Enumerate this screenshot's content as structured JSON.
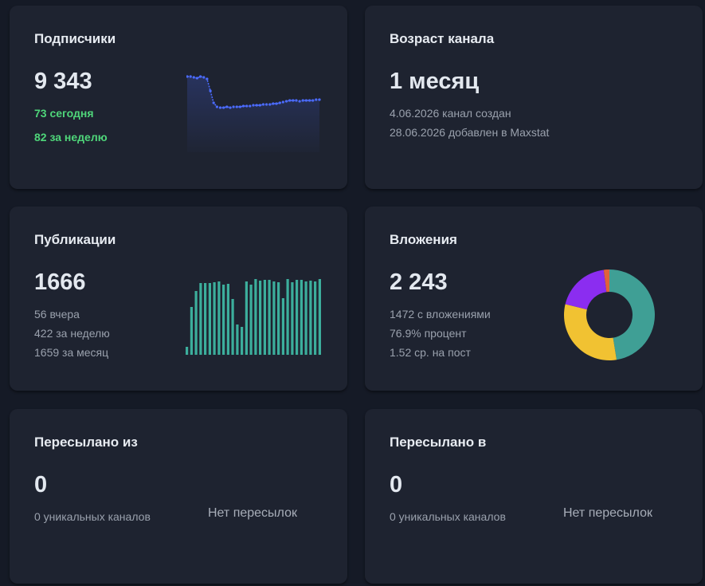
{
  "subscribers": {
    "title": "Подписчики",
    "value": "9 343",
    "today": "73 сегодня",
    "week": "82 за неделю",
    "color": "#4b6bff",
    "chart_data": {
      "type": "line",
      "values": [
        9343,
        9343,
        9342,
        9341,
        9343,
        9342,
        9340,
        9325,
        9310,
        9305,
        9304,
        9304,
        9305,
        9304,
        9305,
        9305,
        9305,
        9306,
        9306,
        9306,
        9307,
        9307,
        9307,
        9308,
        9308,
        9308,
        9309,
        9309,
        9310,
        9311,
        9312,
        9313,
        9313,
        9313,
        9312,
        9313,
        9313,
        9313,
        9313,
        9314,
        9314
      ],
      "ylim": [
        9250,
        9345
      ]
    }
  },
  "age": {
    "title": "Возраст канала",
    "value": "1 месяц",
    "created": "4.06.2026 канал создан",
    "added": "28.06.2026 добавлен в Maxstat"
  },
  "publications": {
    "title": "Публикации",
    "value": "1666",
    "yesterday": "56 вчера",
    "week": "422 за неделю",
    "month": "1659 за месяц",
    "color": "#3cae9c",
    "chart_data": {
      "type": "bar",
      "values": [
        10,
        60,
        80,
        90,
        90,
        90,
        91,
        92,
        88,
        89,
        70,
        38,
        35,
        92,
        88,
        95,
        93,
        94,
        94,
        92,
        91,
        71,
        95,
        91,
        94,
        94,
        92,
        93,
        92,
        95
      ],
      "ylim": [
        0,
        100
      ]
    }
  },
  "attachments": {
    "title": "Вложения",
    "value": "2 243",
    "with_attachments": "1472 с вложениями",
    "percent": "76.9% процент",
    "per_post": "1.52 ср. на пост",
    "chart_data": {
      "type": "pie",
      "slices": [
        {
          "value": 47,
          "color": "#3f9f95"
        },
        {
          "value": 31,
          "color": "#f1c232"
        },
        {
          "value": 19,
          "color": "#8b2df0"
        },
        {
          "value": 2,
          "color": "#e0623a"
        }
      ]
    }
  },
  "forwarded_from": {
    "title": "Пересылано из",
    "value": "0",
    "unique": "0 уникальных каналов",
    "empty": "Нет пересылок"
  },
  "forwarded_to": {
    "title": "Пересылано в",
    "value": "0",
    "unique": "0 уникальных каналов",
    "empty": "Нет пересылок"
  }
}
